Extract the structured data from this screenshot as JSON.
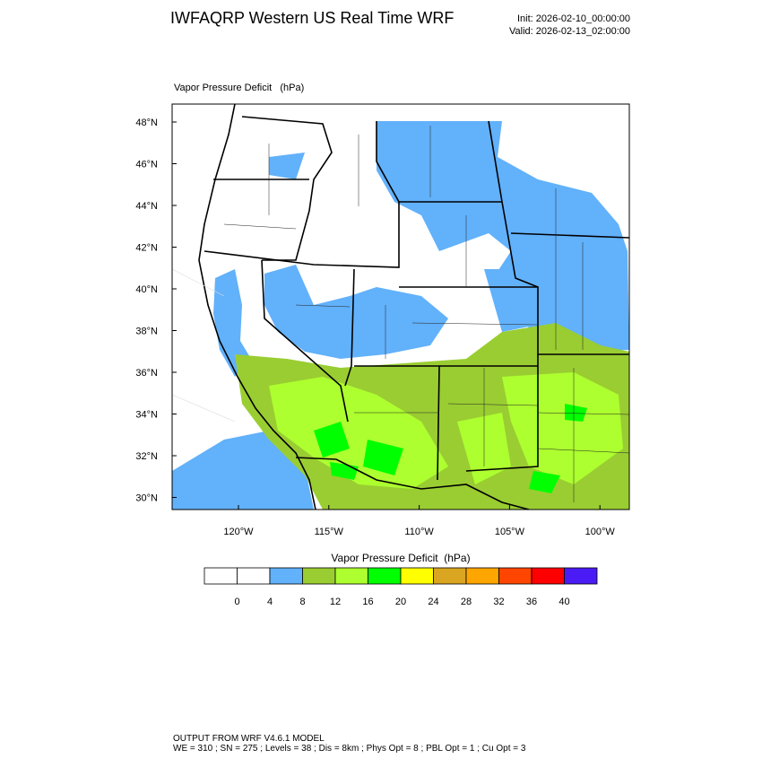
{
  "header": {
    "title": "IWFAQRP Western US Real Time WRF",
    "init": "Init: 2026-02-10_00:00:00",
    "valid": "Valid: 2026-02-13_02:00:00"
  },
  "map": {
    "label": "Vapor Pressure Deficit   (hPa)",
    "lat_labels": [
      "48°N",
      "46°N",
      "44°N",
      "42°N",
      "40°N",
      "38°N",
      "36°N",
      "34°N",
      "32°N",
      "30°N"
    ],
    "lon_labels": [
      "120°W",
      "115°W",
      "110°W",
      "105°W",
      "100°W"
    ]
  },
  "colorbar": {
    "title": "Vapor Pressure Deficit  (hPa)",
    "levels": [
      0,
      4,
      8,
      12,
      16,
      20,
      24,
      28,
      32,
      36,
      40
    ],
    "colors": [
      "#ffffff",
      "#ffffff",
      "#62b1fb",
      "#9acd32",
      "#adff2f",
      "#00ff00",
      "#ffff00",
      "#daa520",
      "#ffa500",
      "#ff4500",
      "#ff0000",
      "#4b1bf5"
    ]
  },
  "footer": {
    "line1": "OUTPUT FROM WRF V4.6.1 MODEL",
    "line2": "WE = 310 ; SN = 275 ; Levels = 38 ; Dis = 8km ; Phys Opt = 8 ; PBL Opt = 1 ; Cu Opt = 3"
  }
}
